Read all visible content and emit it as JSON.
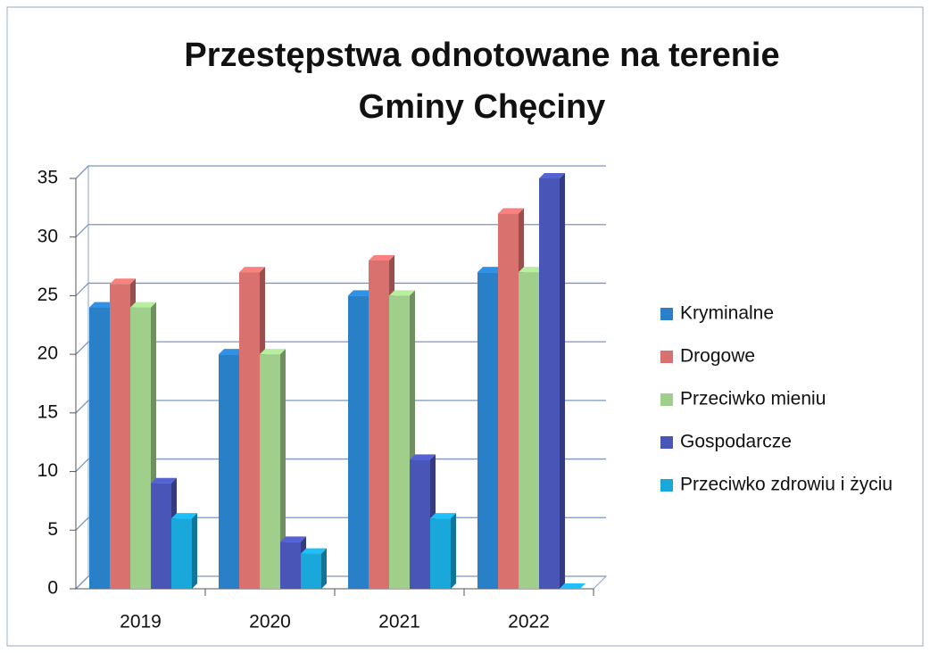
{
  "chart_data": {
    "type": "bar3d",
    "title": [
      "Przestępstwa odnotowane na terenie",
      "Gminy Chęciny"
    ],
    "categories": [
      "2019",
      "2020",
      "2021",
      "2022"
    ],
    "series": [
      {
        "name": "Kryminalne",
        "color": "#2a7fc9",
        "values": [
          24,
          20,
          25,
          27
        ]
      },
      {
        "name": "Drogowe",
        "color": "#d9716e",
        "values": [
          26,
          27,
          28,
          32
        ]
      },
      {
        "name": "Przeciwko mieniu",
        "color": "#9fcf8a",
        "values": [
          24,
          20,
          25,
          27
        ]
      },
      {
        "name": "Gospodarcze",
        "color": "#4a55b8",
        "values": [
          9,
          4,
          11,
          35
        ]
      },
      {
        "name": "Przeciwko zdrowiu i życiu",
        "color": "#1aa7d9",
        "values": [
          6,
          3,
          6,
          0
        ]
      }
    ],
    "ylim": [
      0,
      35
    ],
    "yticks": [
      0,
      5,
      10,
      15,
      20,
      25,
      30,
      35
    ],
    "grid": true,
    "legend": "right"
  }
}
